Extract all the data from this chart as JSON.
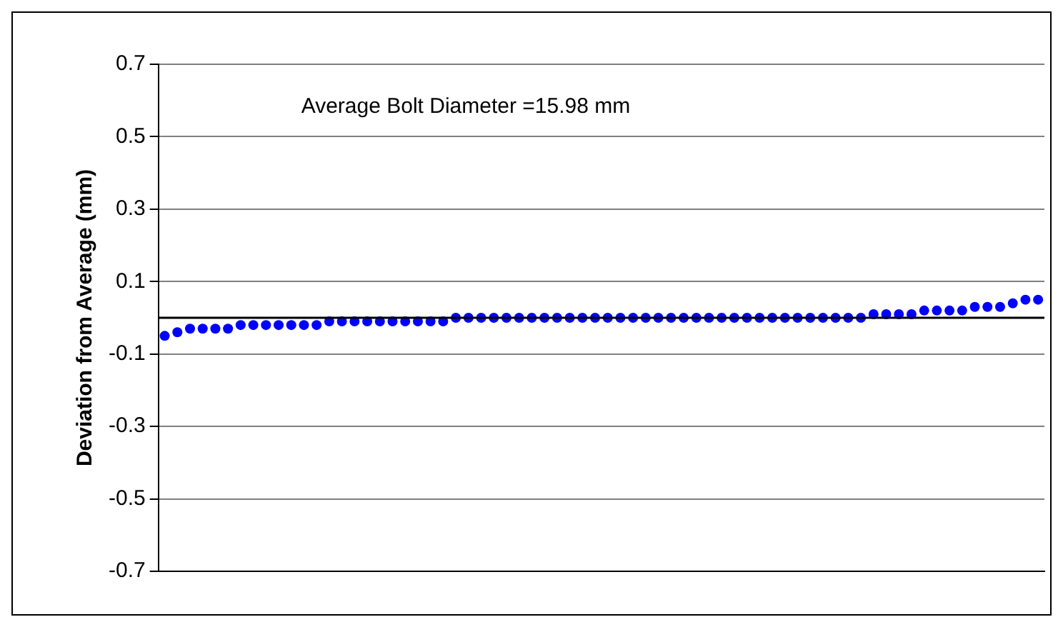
{
  "chart_data": {
    "type": "scatter",
    "ylabel": "Deviation from Average (mm)",
    "annotations": [
      "Average Bolt Diameter =15.98 mm"
    ],
    "categories": [
      null,
      null,
      null,
      null,
      null,
      null,
      null,
      null,
      null,
      null,
      null,
      null,
      null,
      null,
      null,
      null,
      null,
      null,
      null,
      null,
      null,
      null,
      null,
      null,
      null,
      null,
      null,
      null,
      null,
      null,
      null,
      null,
      null,
      null,
      null,
      null,
      null,
      null,
      null,
      null,
      null,
      null,
      null,
      null,
      null,
      null,
      null,
      null,
      null,
      null,
      null,
      null,
      null,
      null,
      null,
      null,
      null,
      null,
      null,
      null,
      null,
      null,
      null,
      null,
      null,
      null,
      null,
      null,
      null,
      null
    ],
    "values": [
      -0.05,
      -0.04,
      -0.03,
      -0.03,
      -0.03,
      -0.03,
      -0.02,
      -0.02,
      -0.02,
      -0.02,
      -0.02,
      -0.02,
      -0.02,
      -0.01,
      -0.01,
      -0.01,
      -0.01,
      -0.01,
      -0.01,
      -0.01,
      -0.01,
      -0.01,
      -0.01,
      0,
      0,
      0,
      0,
      0,
      0,
      0,
      0,
      0,
      0,
      0,
      0,
      0,
      0,
      0,
      0,
      0,
      0,
      0,
      0,
      0,
      0,
      0,
      0,
      0,
      0,
      0,
      0,
      0,
      0,
      0,
      0,
      0,
      0.01,
      0.01,
      0.01,
      0.01,
      0.02,
      0.02,
      0.02,
      0.02,
      0.03,
      0.03,
      0.03,
      0.04,
      0.05,
      0.05
    ],
    "color": "#0000ff",
    "marker": "circle",
    "ylim": [
      -0.7,
      0.7
    ],
    "yticks": [
      -0.7,
      -0.5,
      -0.3,
      -0.1,
      0.1,
      0.3,
      0.5,
      0.7
    ],
    "grid": "y",
    "ref_lines": [
      {
        "axis": "y",
        "value": 0,
        "color": "#000000"
      }
    ]
  }
}
